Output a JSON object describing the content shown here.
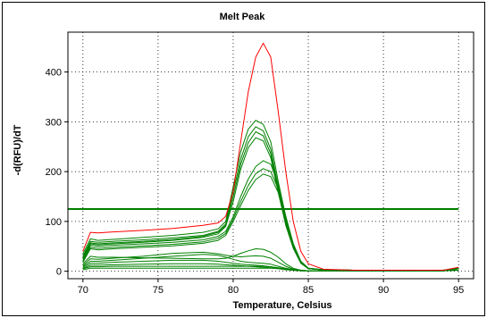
{
  "chart_data": {
    "type": "line",
    "title": "Melt Peak",
    "xlabel": "Temperature, Celsius",
    "ylabel": "-d(RFU)/dT",
    "xlim": [
      69,
      96
    ],
    "ylim": [
      -15,
      480
    ],
    "xticks": [
      70,
      75,
      80,
      85,
      90,
      95
    ],
    "yticks": [
      0,
      100,
      200,
      300,
      400
    ],
    "grid": true,
    "legend": "none",
    "threshold": {
      "y": 125,
      "color": "#008000"
    },
    "colors": {
      "red_trace": "#ff0000",
      "green_trace": "#008000"
    },
    "series": [
      {
        "color": "#ff0000",
        "x": [
          70,
          70.5,
          71,
          72,
          74,
          76,
          78,
          79,
          79.5,
          80,
          80.5,
          81,
          81.5,
          82,
          82.5,
          83,
          83.5,
          84,
          84.5,
          85,
          86,
          88,
          90,
          92,
          94,
          95
        ],
        "y": [
          40,
          78,
          77,
          79,
          82,
          86,
          92,
          97,
          110,
          160,
          260,
          360,
          430,
          458,
          430,
          320,
          200,
          100,
          40,
          15,
          4,
          2,
          2,
          2,
          2,
          8
        ]
      },
      {
        "color": "#008000",
        "x": [
          70,
          70.5,
          71,
          72,
          74,
          76,
          78,
          79,
          79.5,
          80,
          80.5,
          81,
          81.5,
          82,
          82.5,
          83,
          83.5,
          84,
          84.5,
          85,
          86,
          88,
          90,
          92,
          94,
          95
        ],
        "y": [
          35,
          65,
          62,
          64,
          68,
          72,
          78,
          85,
          100,
          170,
          240,
          285,
          303,
          295,
          260,
          180,
          110,
          55,
          20,
          6,
          3,
          2,
          2,
          2,
          2,
          6
        ]
      },
      {
        "color": "#008000",
        "x": [
          70,
          70.5,
          71,
          72,
          74,
          76,
          78,
          79,
          79.5,
          80,
          80.5,
          81,
          81.5,
          82,
          82.5,
          83,
          83.5,
          84,
          84.5,
          85,
          86,
          88,
          90,
          92,
          94,
          95
        ],
        "y": [
          30,
          60,
          58,
          60,
          63,
          67,
          72,
          80,
          95,
          160,
          225,
          270,
          290,
          282,
          245,
          170,
          100,
          50,
          18,
          5,
          3,
          2,
          2,
          2,
          2,
          6
        ]
      },
      {
        "color": "#008000",
        "x": [
          70,
          70.5,
          71,
          72,
          74,
          76,
          78,
          79,
          79.5,
          80,
          80.5,
          81,
          81.5,
          82,
          82.5,
          83,
          83.5,
          84,
          84.5,
          85,
          86,
          88,
          90,
          92,
          94,
          95
        ],
        "y": [
          28,
          57,
          55,
          57,
          60,
          64,
          70,
          78,
          92,
          150,
          215,
          258,
          280,
          272,
          236,
          162,
          95,
          48,
          17,
          5,
          3,
          2,
          2,
          2,
          2,
          6
        ]
      },
      {
        "color": "#008000",
        "x": [
          70,
          70.5,
          71,
          72,
          74,
          76,
          78,
          79,
          79.5,
          80,
          80.5,
          81,
          81.5,
          82,
          82.5,
          83,
          83.5,
          84,
          84.5,
          85,
          86,
          88,
          90,
          92,
          94,
          95
        ],
        "y": [
          25,
          55,
          53,
          55,
          58,
          62,
          68,
          75,
          90,
          140,
          205,
          248,
          268,
          262,
          228,
          158,
          92,
          46,
          16,
          5,
          3,
          2,
          2,
          2,
          2,
          6
        ]
      },
      {
        "color": "#008000",
        "x": [
          70,
          70.5,
          71,
          72,
          74,
          76,
          78,
          79,
          79.5,
          80,
          80.5,
          81,
          81.5,
          82,
          82.5,
          83,
          83.5,
          84,
          84.5,
          85,
          86,
          88,
          90,
          92,
          94,
          95
        ],
        "y": [
          22,
          52,
          50,
          52,
          55,
          58,
          63,
          70,
          80,
          110,
          150,
          185,
          210,
          222,
          215,
          175,
          110,
          55,
          20,
          6,
          3,
          2,
          2,
          2,
          2,
          6
        ]
      },
      {
        "color": "#008000",
        "x": [
          70,
          70.5,
          71,
          72,
          74,
          76,
          78,
          79,
          79.5,
          80,
          80.5,
          81,
          81.5,
          82,
          82.5,
          83,
          83.5,
          84,
          84.5,
          85,
          86,
          88,
          90,
          92,
          94,
          95
        ],
        "y": [
          20,
          48,
          46,
          48,
          51,
          54,
          59,
          66,
          76,
          105,
          140,
          172,
          196,
          206,
          200,
          165,
          105,
          52,
          19,
          6,
          3,
          2,
          2,
          2,
          2,
          6
        ]
      },
      {
        "color": "#008000",
        "x": [
          70,
          70.5,
          71,
          72,
          74,
          76,
          78,
          79,
          79.5,
          80,
          80.5,
          81,
          81.5,
          82,
          82.5,
          83,
          83.5,
          84,
          84.5,
          85,
          86,
          88,
          90,
          92,
          94,
          95
        ],
        "y": [
          18,
          45,
          43,
          45,
          48,
          51,
          56,
          62,
          72,
          100,
          132,
          162,
          184,
          195,
          190,
          158,
          100,
          50,
          18,
          5,
          3,
          2,
          2,
          2,
          2,
          6
        ]
      },
      {
        "color": "#008000",
        "x": [
          70,
          70.5,
          71,
          72,
          74,
          76,
          78,
          79,
          79.5,
          80,
          80.5,
          81,
          81.5,
          82,
          82.5,
          83,
          83.5,
          84,
          84.5,
          85,
          86,
          88,
          90,
          92,
          94,
          95
        ],
        "y": [
          15,
          30,
          28,
          28,
          27,
          26,
          25,
          25,
          26,
          30,
          36,
          41,
          45,
          44,
          38,
          28,
          15,
          6,
          2,
          1,
          1,
          1,
          1,
          1,
          1,
          3
        ]
      },
      {
        "color": "#008000",
        "x": [
          70,
          70.5,
          71,
          72,
          74,
          76,
          78,
          79,
          79.5,
          80,
          80.5,
          81,
          81.5,
          82,
          82.5,
          83,
          83.5,
          84,
          84.5,
          85,
          86,
          88,
          90,
          92,
          94,
          95
        ],
        "y": [
          12,
          25,
          24,
          26,
          30,
          36,
          38,
          35,
          32,
          30,
          29,
          30,
          31,
          30,
          26,
          18,
          10,
          4,
          2,
          1,
          1,
          1,
          1,
          1,
          1,
          3
        ]
      },
      {
        "color": "#008000",
        "x": [
          70,
          70.5,
          71,
          72,
          74,
          76,
          78,
          79,
          79.5,
          80,
          80.5,
          81,
          81.5,
          82,
          82.5,
          83,
          83.5,
          84,
          84.5,
          85,
          86,
          88,
          90,
          92,
          94,
          95
        ],
        "y": [
          10,
          20,
          20,
          22,
          26,
          30,
          34,
          32,
          28,
          24,
          20,
          18,
          17,
          16,
          14,
          10,
          6,
          3,
          1,
          1,
          1,
          1,
          1,
          1,
          1,
          3
        ]
      },
      {
        "color": "#008000",
        "x": [
          70,
          70.5,
          71,
          72,
          74,
          76,
          78,
          79,
          79.5,
          80,
          80.5,
          81,
          81.5,
          82,
          82.5,
          83,
          83.5,
          84,
          84.5,
          85,
          86,
          88,
          90,
          92,
          94,
          95
        ],
        "y": [
          8,
          16,
          16,
          18,
          20,
          22,
          22,
          20,
          18,
          16,
          14,
          13,
          12,
          11,
          9,
          6,
          4,
          2,
          1,
          1,
          1,
          1,
          1,
          1,
          1,
          3
        ]
      },
      {
        "color": "#008000",
        "x": [
          70,
          70.5,
          71,
          72,
          74,
          76,
          78,
          79,
          79.5,
          80,
          80.5,
          81,
          81.5,
          82,
          82.5,
          83,
          83.5,
          84,
          84.5,
          85,
          86,
          88,
          90,
          92,
          94,
          95
        ],
        "y": [
          6,
          12,
          12,
          13,
          14,
          15,
          15,
          14,
          13,
          12,
          11,
          10,
          9,
          8,
          7,
          5,
          3,
          2,
          1,
          1,
          1,
          1,
          1,
          1,
          1,
          2
        ]
      },
      {
        "color": "#008000",
        "x": [
          70,
          70.5,
          71,
          72,
          74,
          76,
          78,
          79,
          79.5,
          80,
          80.5,
          81,
          81.5,
          82,
          82.5,
          83,
          83.5,
          84,
          84.5,
          85,
          86,
          88,
          90,
          92,
          94,
          95
        ],
        "y": [
          5,
          9,
          9,
          10,
          10,
          10,
          10,
          10,
          10,
          10,
          10,
          10,
          10,
          10,
          9,
          7,
          5,
          3,
          2,
          1,
          1,
          1,
          1,
          1,
          1,
          2
        ]
      },
      {
        "color": "#008000",
        "x": [
          70,
          70.5,
          71,
          72,
          74,
          76,
          78,
          79,
          79.5,
          80,
          80.5,
          81,
          81.5,
          82,
          82.5,
          83,
          83.5,
          84,
          84.5,
          85,
          86,
          88,
          90,
          92,
          94,
          95
        ],
        "y": [
          3,
          6,
          6,
          6,
          6,
          6,
          6,
          6,
          6,
          6,
          6,
          6,
          6,
          6,
          6,
          5,
          4,
          2,
          1,
          1,
          1,
          1,
          1,
          1,
          1,
          2
        ]
      }
    ]
  }
}
